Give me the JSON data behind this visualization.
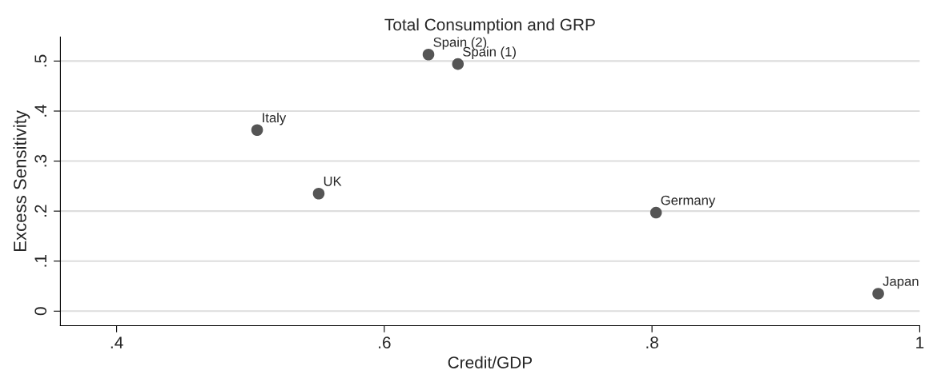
{
  "chart_data": {
    "type": "scatter",
    "title": "Total Consumption and GRP",
    "xlabel": "Credit/GDP",
    "ylabel": "Excess Sensitivity",
    "x": [
      0.633,
      0.655,
      0.505,
      0.551,
      0.803,
      0.969
    ],
    "series": [
      {
        "color": "#555555",
        "values": [
          0.513,
          0.494,
          0.362,
          0.235,
          0.197,
          0.035
        ]
      }
    ],
    "annotations": [
      {
        "text": "Spain (2)",
        "x": 0.633,
        "y": 0.513
      },
      {
        "text": "Spain (1)",
        "x": 0.655,
        "y": 0.494
      },
      {
        "text": "Italy",
        "x": 0.505,
        "y": 0.362
      },
      {
        "text": "UK",
        "x": 0.551,
        "y": 0.235
      },
      {
        "text": "Germany",
        "x": 0.803,
        "y": 0.197
      },
      {
        "text": "Japan",
        "x": 0.969,
        "y": 0.035
      }
    ],
    "xlim": [
      0.358,
      1.0
    ],
    "ylim": [
      -0.029,
      0.548
    ],
    "xticks": [
      {
        "value": 0.4,
        "label": ".4"
      },
      {
        "value": 0.6,
        "label": ".6"
      },
      {
        "value": 0.8,
        "label": ".8"
      },
      {
        "value": 1,
        "label": "1"
      }
    ],
    "yticks": [
      0,
      {
        "value": 0.1,
        "label": ".1"
      },
      {
        "value": 0.2,
        "label": ".2"
      },
      {
        "value": 0.3,
        "label": ".3"
      },
      {
        "value": 0.4,
        "label": ".4"
      },
      {
        "value": 0.5,
        "label": ".5"
      }
    ],
    "grid": "y",
    "marker": "circle",
    "legend": false
  }
}
